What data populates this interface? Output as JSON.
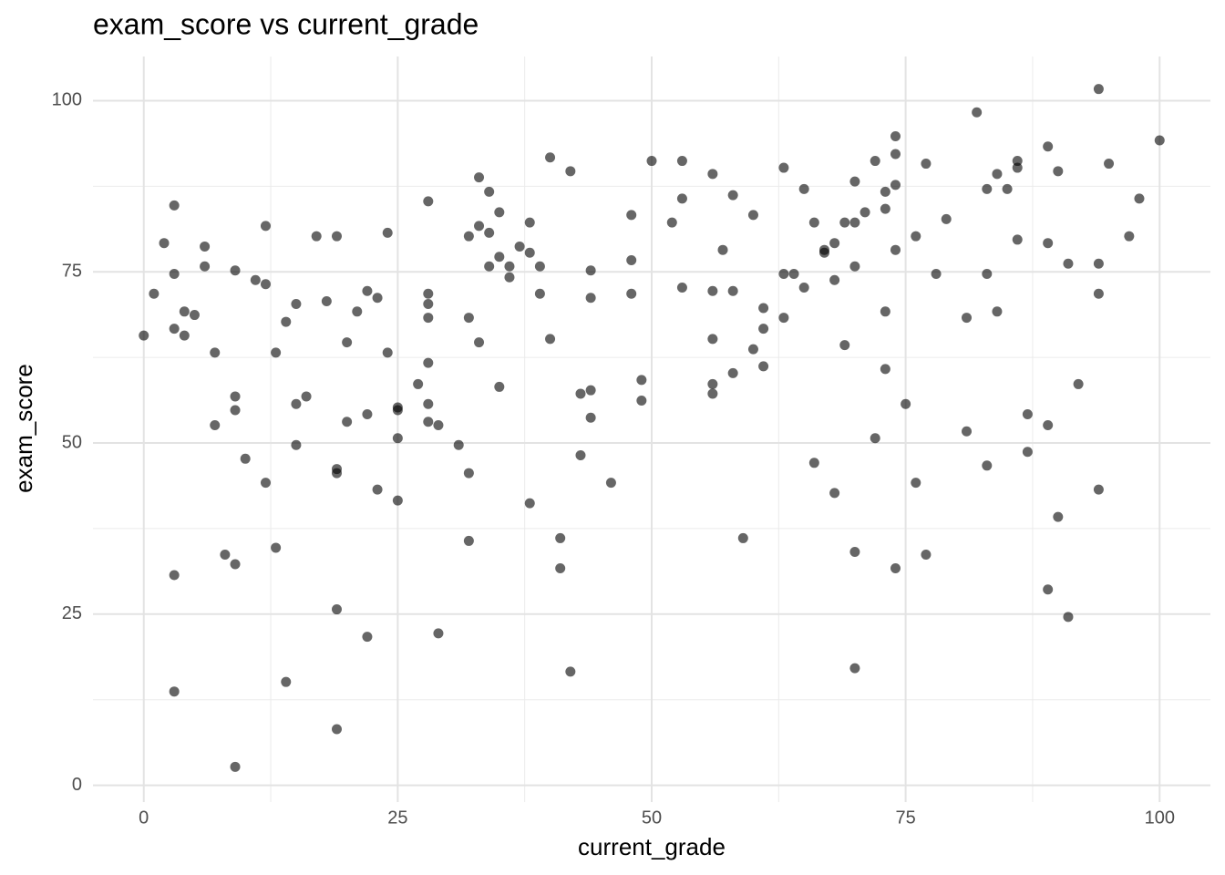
{
  "chart_data": {
    "type": "scatter",
    "title": "exam_score vs current_grade",
    "x_label": "current_grade",
    "y_label": "exam_score",
    "color": "#000000",
    "alpha": 0.6,
    "grid": true,
    "xlim": [
      -5,
      105
    ],
    "ylim": [
      -2.45,
      106.45
    ],
    "xticks": [
      0,
      25,
      50,
      75,
      100
    ],
    "yticks": [
      0,
      25,
      50,
      75,
      100
    ],
    "x_minor_breaks": [
      12.5,
      37.5,
      62.5,
      87.5
    ],
    "y_minor_breaks": [
      12.5,
      37.5,
      62.5,
      87.5
    ],
    "x": [
      0,
      1,
      2,
      3,
      3,
      3,
      3,
      3,
      4,
      4,
      5,
      6,
      6,
      7,
      7,
      8,
      9,
      9,
      9,
      9,
      9,
      10,
      11,
      12,
      12,
      12,
      13,
      13,
      14,
      14,
      15,
      15,
      15,
      16,
      17,
      18,
      19,
      19,
      19,
      19,
      19,
      20,
      20,
      21,
      22,
      22,
      22,
      23,
      23,
      24,
      24,
      25,
      25,
      25,
      25,
      27,
      28,
      28,
      28,
      28,
      28,
      28,
      28,
      29,
      29,
      31,
      32,
      32,
      32,
      32,
      33,
      33,
      33,
      34,
      34,
      34,
      35,
      35,
      35,
      36,
      36,
      37,
      38,
      38,
      38,
      39,
      39,
      40,
      40,
      41,
      41,
      42,
      42,
      43,
      43,
      44,
      44,
      44,
      44,
      46,
      48,
      48,
      48,
      49,
      49,
      50,
      52,
      53,
      53,
      53,
      56,
      56,
      56,
      56,
      56,
      57,
      58,
      58,
      58,
      59,
      60,
      60,
      61,
      61,
      61,
      63,
      63,
      63,
      64,
      65,
      65,
      66,
      66,
      67,
      67,
      68,
      68,
      68,
      69,
      69,
      70,
      70,
      70,
      70,
      70,
      71,
      72,
      72,
      73,
      73,
      73,
      73,
      74,
      74,
      74,
      74,
      74,
      75,
      76,
      76,
      77,
      77,
      78,
      79,
      81,
      81,
      82,
      83,
      83,
      83,
      84,
      84,
      85,
      86,
      86,
      86,
      87,
      87,
      89,
      89,
      89,
      89,
      90,
      90,
      91,
      91,
      92,
      94,
      94,
      94,
      94,
      95,
      97,
      98,
      100
    ],
    "values": [
      65.7,
      71.8,
      79.2,
      84.7,
      74.7,
      66.7,
      30.7,
      13.7,
      69.2,
      65.7,
      68.7,
      78.7,
      75.8,
      63.2,
      52.6,
      33.7,
      75.2,
      56.8,
      54.8,
      32.3,
      2.7,
      47.7,
      73.8,
      81.7,
      73.2,
      44.2,
      63.2,
      34.7,
      67.7,
      15.1,
      70.3,
      55.7,
      49.7,
      56.8,
      80.2,
      70.7,
      80.2,
      46.2,
      45.6,
      25.7,
      8.2,
      64.7,
      53.1,
      69.2,
      72.2,
      54.2,
      21.7,
      71.2,
      43.2,
      80.7,
      63.2,
      55.2,
      54.8,
      50.7,
      41.6,
      58.6,
      85.3,
      71.8,
      70.3,
      68.3,
      61.7,
      55.7,
      53.1,
      52.6,
      22.2,
      49.7,
      80.2,
      68.3,
      45.6,
      35.7,
      88.8,
      81.7,
      64.7,
      86.7,
      80.7,
      75.8,
      83.7,
      77.2,
      58.2,
      75.8,
      74.2,
      78.7,
      82.2,
      77.8,
      41.2,
      75.8,
      71.8,
      91.7,
      65.2,
      36.1,
      31.7,
      89.7,
      16.6,
      57.2,
      48.2,
      75.2,
      71.2,
      57.7,
      53.7,
      44.2,
      83.3,
      76.7,
      71.8,
      59.2,
      56.2,
      91.2,
      82.2,
      91.2,
      85.7,
      72.7,
      89.3,
      72.2,
      65.2,
      58.6,
      57.2,
      78.2,
      86.2,
      72.2,
      60.2,
      36.1,
      83.3,
      63.7,
      69.7,
      66.7,
      61.2,
      90.2,
      74.7,
      68.3,
      74.7,
      87.1,
      72.7,
      82.2,
      47.1,
      78.2,
      77.8,
      79.2,
      73.8,
      42.7,
      82.2,
      64.3,
      88.2,
      82.2,
      75.8,
      34.1,
      17.1,
      83.7,
      91.2,
      50.7,
      86.7,
      84.2,
      69.2,
      60.8,
      94.8,
      92.2,
      87.7,
      78.2,
      31.7,
      55.7,
      80.2,
      44.2,
      90.8,
      33.7,
      74.7,
      82.7,
      68.3,
      51.7,
      98.3,
      87.1,
      74.7,
      46.7,
      89.3,
      69.2,
      87.1,
      91.2,
      90.2,
      79.7,
      54.2,
      48.7,
      93.3,
      79.2,
      52.6,
      28.6,
      89.7,
      39.2,
      76.2,
      24.6,
      58.6,
      101.7,
      76.2,
      71.8,
      43.2,
      90.8,
      80.2,
      85.7,
      94.2
    ]
  }
}
